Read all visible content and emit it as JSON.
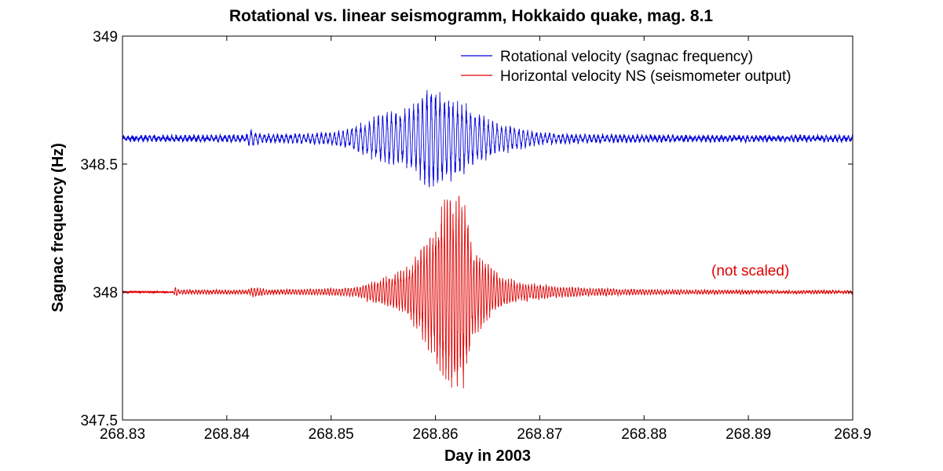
{
  "chart_data": {
    "type": "line",
    "title": "Rotational vs. linear seismogramm, Hokkaido quake, mag. 8.1",
    "xlabel": "Day in 2003",
    "ylabel": "Sagnac frequency (Hz)",
    "xlim": [
      268.83,
      268.9
    ],
    "ylim": [
      347.5,
      349
    ],
    "x_ticks": [
      268.83,
      268.84,
      268.85,
      268.86,
      268.87,
      268.88,
      268.89,
      268.9
    ],
    "x_tick_labels": [
      "268.83",
      "268.84",
      "268.85",
      "268.86",
      "268.87",
      "268.88",
      "268.89",
      "268.9"
    ],
    "y_ticks": [
      347.5,
      348,
      348.5,
      349
    ],
    "y_tick_labels": [
      "347.5",
      "348",
      "348.5",
      "349"
    ],
    "grid": false,
    "legend_position": "top-right",
    "annotation": "(not scaled)",
    "series": [
      {
        "name": "Rotational velocity (sagnac frequency)",
        "color": "#0000dd",
        "baseline": 348.6,
        "noise_amp": 0.008,
        "envelope": [
          [
            268.83,
            0.008
          ],
          [
            268.8419,
            0.012
          ],
          [
            268.8421,
            0.035
          ],
          [
            268.8435,
            0.015
          ],
          [
            268.848,
            0.018
          ],
          [
            268.851,
            0.03
          ],
          [
            268.853,
            0.06
          ],
          [
            268.855,
            0.1
          ],
          [
            268.8575,
            0.12
          ],
          [
            268.8595,
            0.21
          ],
          [
            268.861,
            0.17
          ],
          [
            268.8625,
            0.15
          ],
          [
            268.864,
            0.1
          ],
          [
            268.866,
            0.06
          ],
          [
            268.868,
            0.04
          ],
          [
            268.87,
            0.022
          ],
          [
            268.874,
            0.015
          ],
          [
            268.88,
            0.012
          ],
          [
            268.885,
            0.01
          ],
          [
            268.9,
            0.009
          ]
        ],
        "period": 0.00042
      },
      {
        "name": "Horizontal velocity NS (seismometer output)",
        "color": "#e00000",
        "baseline": 348.0,
        "noise_amp": 0.004,
        "envelope": [
          [
            268.83,
            0.0
          ],
          [
            268.8349,
            0.0
          ],
          [
            268.835,
            0.025
          ],
          [
            268.8355,
            0.008
          ],
          [
            268.842,
            0.008
          ],
          [
            268.8425,
            0.02
          ],
          [
            268.844,
            0.008
          ],
          [
            268.849,
            0.012
          ],
          [
            268.8525,
            0.02
          ],
          [
            268.8545,
            0.05
          ],
          [
            268.857,
            0.09
          ],
          [
            268.859,
            0.2
          ],
          [
            268.8605,
            0.35
          ],
          [
            268.8618,
            0.42
          ],
          [
            268.8628,
            0.38
          ],
          [
            268.8635,
            0.2
          ],
          [
            268.8645,
            0.14
          ],
          [
            268.866,
            0.07
          ],
          [
            268.868,
            0.04
          ],
          [
            268.871,
            0.025
          ],
          [
            268.875,
            0.015
          ],
          [
            268.88,
            0.01
          ],
          [
            268.89,
            0.006
          ],
          [
            268.9,
            0.005
          ]
        ],
        "period": 0.00028
      }
    ]
  }
}
